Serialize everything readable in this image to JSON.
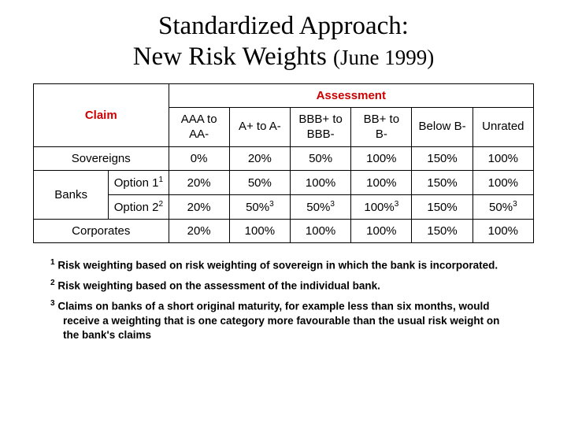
{
  "title_line1": "Standardized Approach:",
  "title_line2": "New Risk Weights ",
  "title_date": "(June 1999)",
  "headers": {
    "assessment": "Assessment",
    "claim": "Claim",
    "ratings": [
      {
        "l1": "AAA to",
        "l2": "AA-"
      },
      {
        "l1": "A+ to A-",
        "l2": ""
      },
      {
        "l1": "BBB+ to",
        "l2": "BBB-"
      },
      {
        "l1": "BB+ to",
        "l2": "B-"
      },
      {
        "l1": "Below B-",
        "l2": ""
      },
      {
        "l1": "Unrated",
        "l2": ""
      }
    ]
  },
  "rows": {
    "sovereigns": {
      "label": "Sovereigns",
      "vals": [
        "0%",
        "20%",
        "50%",
        "100%",
        "150%",
        "100%"
      ]
    },
    "banks_label": "Banks",
    "banks_opt1": {
      "label": "Option 1",
      "note": "1",
      "vals": [
        "20%",
        "50%",
        "100%",
        "100%",
        "150%",
        "100%"
      ]
    },
    "banks_opt2": {
      "label": "Option 2",
      "note": "2",
      "vals": [
        "20%",
        "50%",
        "50%",
        "100%",
        "150%",
        "50%"
      ],
      "notes": [
        "",
        "3",
        "3",
        "3",
        "",
        "3"
      ]
    },
    "corporates": {
      "label": "Corporates",
      "vals": [
        "20%",
        "100%",
        "100%",
        "100%",
        "150%",
        "100%"
      ]
    }
  },
  "footnotes": {
    "f1": {
      "num": "1",
      "text": "Risk weighting based on risk weighting of sovereign in which the bank is incorporated."
    },
    "f2": {
      "num": "2",
      "text": "Risk weighting based on the assessment of the individual bank."
    },
    "f3": {
      "num": "3",
      "text": "Claims on banks of a short original maturity, for example less than six months, would receive a weighting that is one category more favourable than the usual risk weight on the bank's claims"
    }
  },
  "colors": {
    "header_red": "#cc0000",
    "border": "#000000",
    "background": "#ffffff"
  }
}
